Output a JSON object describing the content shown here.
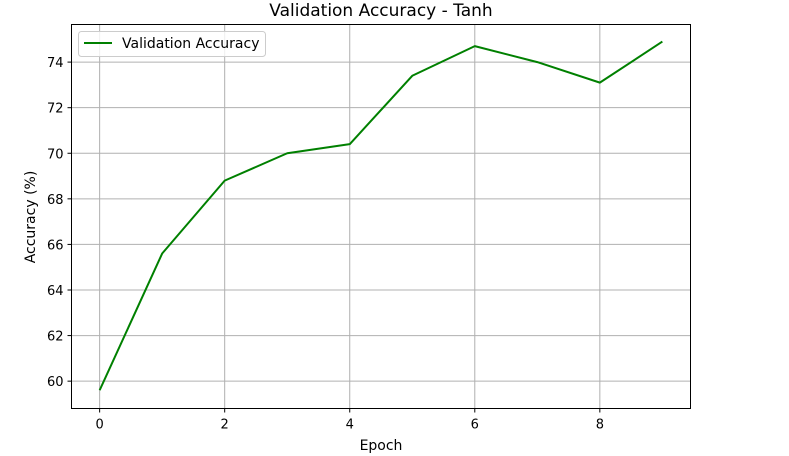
{
  "chart_data": {
    "type": "line",
    "title": "Validation Accuracy - Tanh",
    "xlabel": "Epoch",
    "ylabel": "Accuracy (%)",
    "x": [
      0,
      1,
      2,
      3,
      4,
      5,
      6,
      7,
      8,
      9
    ],
    "series": [
      {
        "name": "Validation Accuracy",
        "color": "#008000",
        "values": [
          59.6,
          65.6,
          68.8,
          70.0,
          70.4,
          73.4,
          74.7,
          74.0,
          73.1,
          74.9
        ]
      }
    ],
    "xlim": [
      -0.45,
      9.45
    ],
    "ylim": [
      58.8,
      75.65
    ],
    "xticks": [
      0,
      2,
      4,
      6,
      8
    ],
    "yticks": [
      60,
      62,
      64,
      66,
      68,
      70,
      72,
      74
    ],
    "xtick_labels": [
      "0",
      "2",
      "4",
      "6",
      "8"
    ],
    "ytick_labels": [
      "60",
      "62",
      "64",
      "66",
      "68",
      "70",
      "72",
      "74"
    ],
    "grid": true,
    "legend_position": "top-left"
  }
}
